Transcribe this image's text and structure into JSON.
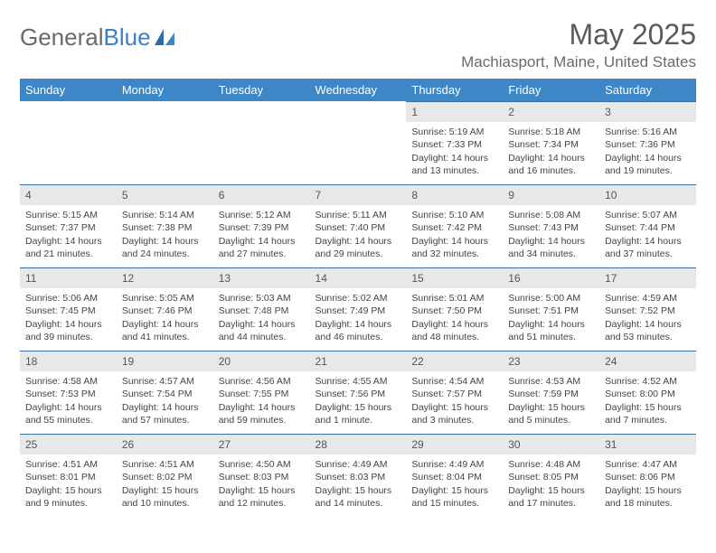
{
  "brand": {
    "general": "General",
    "blue": "Blue"
  },
  "title": "May 2025",
  "location": "Machiasport, Maine, United States",
  "colors": {
    "header_bg": "#3d87c7",
    "header_text": "#ffffff",
    "daynum_bg": "#e8e8e8",
    "daynum_border": "#3a6fa0",
    "page_bg": "#ffffff",
    "body_text": "#444444",
    "title_text": "#5a5a5a",
    "logo_gray": "#6a6a6a",
    "logo_blue": "#3b7fc4"
  },
  "day_labels": [
    "Sunday",
    "Monday",
    "Tuesday",
    "Wednesday",
    "Thursday",
    "Friday",
    "Saturday"
  ],
  "weeks": [
    [
      null,
      null,
      null,
      null,
      {
        "n": "1",
        "sr": "Sunrise: 5:19 AM",
        "ss": "Sunset: 7:33 PM",
        "dl": "Daylight: 14 hours and 13 minutes."
      },
      {
        "n": "2",
        "sr": "Sunrise: 5:18 AM",
        "ss": "Sunset: 7:34 PM",
        "dl": "Daylight: 14 hours and 16 minutes."
      },
      {
        "n": "3",
        "sr": "Sunrise: 5:16 AM",
        "ss": "Sunset: 7:36 PM",
        "dl": "Daylight: 14 hours and 19 minutes."
      }
    ],
    [
      {
        "n": "4",
        "sr": "Sunrise: 5:15 AM",
        "ss": "Sunset: 7:37 PM",
        "dl": "Daylight: 14 hours and 21 minutes."
      },
      {
        "n": "5",
        "sr": "Sunrise: 5:14 AM",
        "ss": "Sunset: 7:38 PM",
        "dl": "Daylight: 14 hours and 24 minutes."
      },
      {
        "n": "6",
        "sr": "Sunrise: 5:12 AM",
        "ss": "Sunset: 7:39 PM",
        "dl": "Daylight: 14 hours and 27 minutes."
      },
      {
        "n": "7",
        "sr": "Sunrise: 5:11 AM",
        "ss": "Sunset: 7:40 PM",
        "dl": "Daylight: 14 hours and 29 minutes."
      },
      {
        "n": "8",
        "sr": "Sunrise: 5:10 AM",
        "ss": "Sunset: 7:42 PM",
        "dl": "Daylight: 14 hours and 32 minutes."
      },
      {
        "n": "9",
        "sr": "Sunrise: 5:08 AM",
        "ss": "Sunset: 7:43 PM",
        "dl": "Daylight: 14 hours and 34 minutes."
      },
      {
        "n": "10",
        "sr": "Sunrise: 5:07 AM",
        "ss": "Sunset: 7:44 PM",
        "dl": "Daylight: 14 hours and 37 minutes."
      }
    ],
    [
      {
        "n": "11",
        "sr": "Sunrise: 5:06 AM",
        "ss": "Sunset: 7:45 PM",
        "dl": "Daylight: 14 hours and 39 minutes."
      },
      {
        "n": "12",
        "sr": "Sunrise: 5:05 AM",
        "ss": "Sunset: 7:46 PM",
        "dl": "Daylight: 14 hours and 41 minutes."
      },
      {
        "n": "13",
        "sr": "Sunrise: 5:03 AM",
        "ss": "Sunset: 7:48 PM",
        "dl": "Daylight: 14 hours and 44 minutes."
      },
      {
        "n": "14",
        "sr": "Sunrise: 5:02 AM",
        "ss": "Sunset: 7:49 PM",
        "dl": "Daylight: 14 hours and 46 minutes."
      },
      {
        "n": "15",
        "sr": "Sunrise: 5:01 AM",
        "ss": "Sunset: 7:50 PM",
        "dl": "Daylight: 14 hours and 48 minutes."
      },
      {
        "n": "16",
        "sr": "Sunrise: 5:00 AM",
        "ss": "Sunset: 7:51 PM",
        "dl": "Daylight: 14 hours and 51 minutes."
      },
      {
        "n": "17",
        "sr": "Sunrise: 4:59 AM",
        "ss": "Sunset: 7:52 PM",
        "dl": "Daylight: 14 hours and 53 minutes."
      }
    ],
    [
      {
        "n": "18",
        "sr": "Sunrise: 4:58 AM",
        "ss": "Sunset: 7:53 PM",
        "dl": "Daylight: 14 hours and 55 minutes."
      },
      {
        "n": "19",
        "sr": "Sunrise: 4:57 AM",
        "ss": "Sunset: 7:54 PM",
        "dl": "Daylight: 14 hours and 57 minutes."
      },
      {
        "n": "20",
        "sr": "Sunrise: 4:56 AM",
        "ss": "Sunset: 7:55 PM",
        "dl": "Daylight: 14 hours and 59 minutes."
      },
      {
        "n": "21",
        "sr": "Sunrise: 4:55 AM",
        "ss": "Sunset: 7:56 PM",
        "dl": "Daylight: 15 hours and 1 minute."
      },
      {
        "n": "22",
        "sr": "Sunrise: 4:54 AM",
        "ss": "Sunset: 7:57 PM",
        "dl": "Daylight: 15 hours and 3 minutes."
      },
      {
        "n": "23",
        "sr": "Sunrise: 4:53 AM",
        "ss": "Sunset: 7:59 PM",
        "dl": "Daylight: 15 hours and 5 minutes."
      },
      {
        "n": "24",
        "sr": "Sunrise: 4:52 AM",
        "ss": "Sunset: 8:00 PM",
        "dl": "Daylight: 15 hours and 7 minutes."
      }
    ],
    [
      {
        "n": "25",
        "sr": "Sunrise: 4:51 AM",
        "ss": "Sunset: 8:01 PM",
        "dl": "Daylight: 15 hours and 9 minutes."
      },
      {
        "n": "26",
        "sr": "Sunrise: 4:51 AM",
        "ss": "Sunset: 8:02 PM",
        "dl": "Daylight: 15 hours and 10 minutes."
      },
      {
        "n": "27",
        "sr": "Sunrise: 4:50 AM",
        "ss": "Sunset: 8:03 PM",
        "dl": "Daylight: 15 hours and 12 minutes."
      },
      {
        "n": "28",
        "sr": "Sunrise: 4:49 AM",
        "ss": "Sunset: 8:03 PM",
        "dl": "Daylight: 15 hours and 14 minutes."
      },
      {
        "n": "29",
        "sr": "Sunrise: 4:49 AM",
        "ss": "Sunset: 8:04 PM",
        "dl": "Daylight: 15 hours and 15 minutes."
      },
      {
        "n": "30",
        "sr": "Sunrise: 4:48 AM",
        "ss": "Sunset: 8:05 PM",
        "dl": "Daylight: 15 hours and 17 minutes."
      },
      {
        "n": "31",
        "sr": "Sunrise: 4:47 AM",
        "ss": "Sunset: 8:06 PM",
        "dl": "Daylight: 15 hours and 18 minutes."
      }
    ]
  ]
}
